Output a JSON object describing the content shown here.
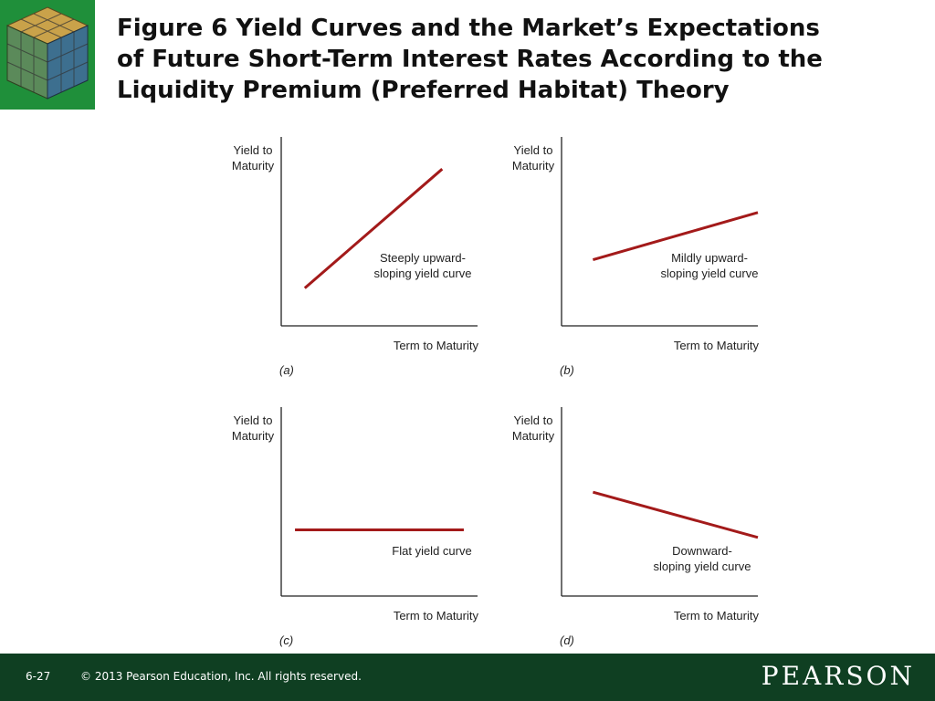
{
  "title_lines": [
    "Figure 6  Yield Curves and the Market’s Expectations",
    "of Future Short-Term Interest Rates According to the",
    "Liquidity Premium (Preferred Habitat) Theory"
  ],
  "colors": {
    "curve": "#a31a1a",
    "footer": "#0f3f22",
    "logo": "#1f8f3a"
  },
  "icons": {
    "logo": "rubiks-cube-icon"
  },
  "chart_data": [
    {
      "type": "line",
      "panel": "(a)",
      "ylabel": [
        "Yield to",
        "Maturity"
      ],
      "xlabel": "Term to Maturity",
      "curve_label": [
        "Steeply upward-",
        "sloping yield curve"
      ],
      "x": [
        0.12,
        0.82
      ],
      "y": [
        0.2,
        0.83
      ],
      "xlim": [
        0,
        1
      ],
      "ylim": [
        0,
        1
      ]
    },
    {
      "type": "line",
      "panel": "(b)",
      "ylabel": [
        "Yield to",
        "Maturity"
      ],
      "xlabel": "Term to Maturity",
      "curve_label": [
        "Mildly upward-",
        "sloping yield curve"
      ],
      "x": [
        0.16,
        1.0
      ],
      "y": [
        0.35,
        0.6
      ],
      "xlim": [
        0,
        1
      ],
      "ylim": [
        0,
        1
      ]
    },
    {
      "type": "line",
      "panel": "(c)",
      "ylabel": [
        "Yield to",
        "Maturity"
      ],
      "xlabel": "Term to Maturity",
      "curve_label": [
        "Flat yield curve"
      ],
      "x": [
        0.07,
        0.93
      ],
      "y": [
        0.35,
        0.35
      ],
      "xlim": [
        0,
        1
      ],
      "ylim": [
        0,
        1
      ]
    },
    {
      "type": "line",
      "panel": "(d)",
      "ylabel": [
        "Yield to",
        "Maturity"
      ],
      "xlabel": "Term to Maturity",
      "curve_label": [
        "Downward-",
        "sloping yield curve"
      ],
      "x": [
        0.16,
        1.0
      ],
      "y": [
        0.55,
        0.31
      ],
      "xlim": [
        0,
        1
      ],
      "ylim": [
        0,
        1
      ]
    }
  ],
  "footer": {
    "slide_number": "6-27",
    "copyright": "© 2013 Pearson Education, Inc. All rights reserved.",
    "brand": "PEARSON"
  }
}
